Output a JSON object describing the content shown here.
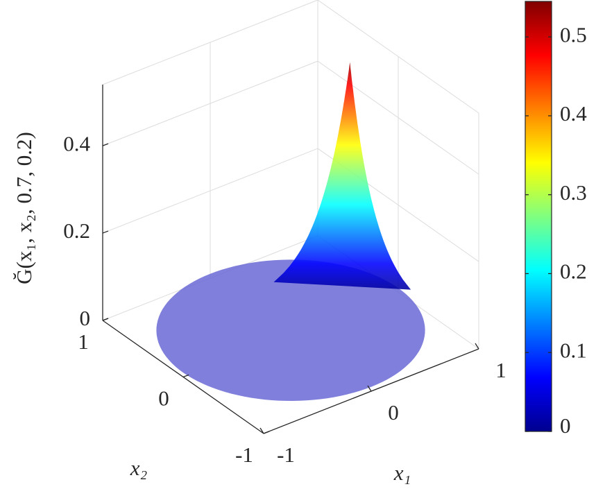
{
  "chart_data": {
    "type": "surface",
    "zlabel": "Ğ(x₁, x₂, 0.7, 0.2)",
    "xlabel": "x₁",
    "ylabel": "x₂",
    "xlim": [
      -1,
      1
    ],
    "xticks": [
      -1,
      0,
      1
    ],
    "ylim": [
      -1,
      1
    ],
    "yticks": [
      -1,
      0,
      1
    ],
    "zlim": [
      0,
      0.54
    ],
    "zticks": [
      0,
      0.2,
      0.4
    ],
    "peak": {
      "x": 0.7,
      "y": 0.2,
      "z": 0.53
    },
    "colormap": "jet",
    "clim": [
      0,
      0.545
    ],
    "colorbar_ticks": [
      0,
      0.1,
      0.2,
      0.3,
      0.4,
      0.5
    ],
    "grid": true
  }
}
